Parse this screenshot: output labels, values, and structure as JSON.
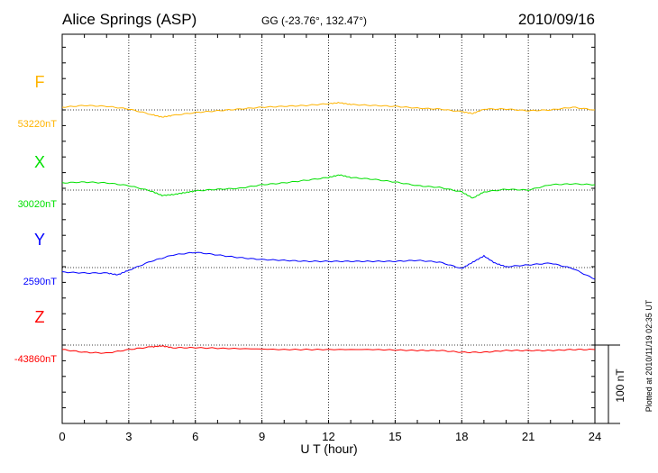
{
  "chart_data": {
    "type": "line",
    "title": "Alice Springs (ASP)",
    "subtitle": "GG (-23.76°, 132.47°)",
    "date": "2010/09/16",
    "xlabel": "U T (hour)",
    "xlim": [
      0,
      24
    ],
    "xticks": [
      "0",
      "3",
      "6",
      "9",
      "12",
      "15",
      "18",
      "21",
      "24"
    ],
    "scale_bar": "100 nT",
    "footnote": "Plotted at 2010/11/19 02:35 UT",
    "grid": true,
    "series": [
      {
        "name": "F",
        "baseline_label": "53220nT",
        "color": "#ffb400",
        "x": [
          0,
          1,
          2,
          3,
          4,
          4.5,
          5,
          6,
          7,
          8,
          9,
          10,
          11,
          12,
          12.5,
          13,
          14,
          15,
          16,
          17,
          18,
          18.5,
          19,
          20,
          21,
          22,
          23,
          24
        ],
        "values": [
          3.4,
          5.7,
          4.6,
          1.1,
          -5.7,
          -9.2,
          -6.9,
          -3.4,
          -1.1,
          1.1,
          3.4,
          4.6,
          5.7,
          8,
          9.2,
          6.9,
          5.7,
          4.6,
          2.3,
          1.1,
          -2.3,
          -4.6,
          1.1,
          1.1,
          -1.1,
          0,
          3.4,
          0
        ]
      },
      {
        "name": "X",
        "baseline_label": "30020nT",
        "color": "#00e000",
        "x": [
          0,
          1,
          2,
          3,
          4,
          4.5,
          5,
          5.5,
          6,
          7,
          8,
          9,
          10,
          11,
          12,
          12.5,
          13,
          14,
          15,
          16,
          17,
          18,
          18.5,
          19,
          20,
          21,
          22,
          23,
          24
        ],
        "values": [
          9.2,
          10.3,
          9.2,
          5.7,
          -1.1,
          -6.9,
          -5.7,
          -3.4,
          -1.1,
          1.1,
          2.3,
          6.9,
          9.2,
          12.6,
          16.1,
          19.5,
          16.1,
          13.8,
          10.3,
          5.7,
          3.4,
          -2.3,
          -10.3,
          -2.3,
          1.1,
          0,
          6.9,
          8,
          6.9
        ]
      },
      {
        "name": "Y",
        "baseline_label": "2590nT",
        "color": "#0000ff",
        "x": [
          0,
          1,
          2,
          2.5,
          3,
          4,
          5,
          6,
          7,
          8,
          9,
          10,
          11,
          12,
          13,
          14,
          15,
          16,
          17,
          18,
          18.5,
          19,
          19.5,
          20,
          21,
          22,
          23,
          24
        ],
        "values": [
          -5.7,
          -6.9,
          -6.9,
          -9.2,
          -3.4,
          8,
          16.1,
          19.5,
          16.1,
          12.6,
          10.3,
          9.2,
          8,
          8,
          8,
          8,
          8,
          9.2,
          6.9,
          -1.1,
          6.9,
          14.9,
          5.7,
          1.1,
          3.4,
          5.7,
          -1.1,
          -14.9
        ]
      },
      {
        "name": "Z",
        "baseline_label": "-43860nT",
        "color": "#ff0000",
        "x": [
          0,
          1,
          2,
          3,
          4,
          4.5,
          5,
          6,
          8,
          10,
          12,
          14,
          16,
          17,
          18,
          19,
          20,
          21,
          22,
          23,
          24
        ],
        "values": [
          -5.7,
          -9.2,
          -10.3,
          -5.7,
          -2.3,
          -1.1,
          -3.4,
          -3.4,
          -4.6,
          -5.7,
          -5.7,
          -5.7,
          -6.9,
          -6.9,
          -9.2,
          -9.2,
          -6.9,
          -6.9,
          -6.9,
          -5.7,
          -5.7
        ]
      }
    ]
  }
}
